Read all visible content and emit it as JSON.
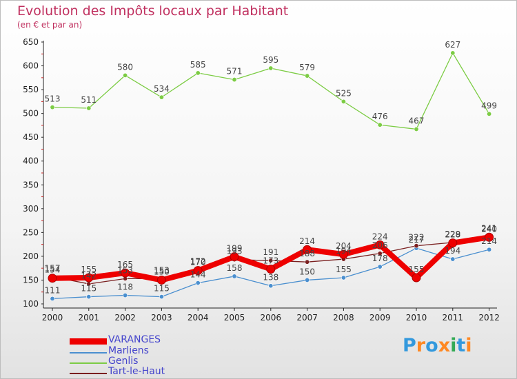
{
  "title": "Evolution des Impôts locaux par Habitant",
  "subtitle": "(en € et par an)",
  "logo_text": "Proxiti",
  "chart_data": {
    "type": "line",
    "x": [
      "2000",
      "2001",
      "2002",
      "2003",
      "2004",
      "2005",
      "2006",
      "2007",
      "2008",
      "2009",
      "2010",
      "2011",
      "2012"
    ],
    "yticks": [
      100,
      150,
      200,
      250,
      300,
      350,
      400,
      450,
      500,
      550,
      600,
      650
    ],
    "ylim": [
      100,
      650
    ],
    "grid": false,
    "legend": "bottom-left",
    "series": [
      {
        "name": "VARANGES",
        "color": "#ee0000",
        "values": [
          154,
          155,
          165,
          150,
          170,
          199,
          173,
          214,
          204,
          224,
          155,
          228,
          240
        ]
      },
      {
        "name": "Marliens",
        "color": "#4a8fcf",
        "values": [
          111,
          115,
          118,
          115,
          144,
          158,
          138,
          150,
          155,
          178,
          217,
          194,
          214
        ]
      },
      {
        "name": "Genlis",
        "color": "#7ccc44",
        "values": [
          513,
          511,
          580,
          534,
          585,
          571,
          595,
          579,
          525,
          476,
          467,
          627,
          499
        ]
      },
      {
        "name": "Tart-le-Haut",
        "color": "#7a1f1f",
        "values": [
          157,
          142,
          153,
          153,
          172,
          193,
          191,
          188,
          194,
          206,
          222,
          229,
          241
        ]
      }
    ]
  }
}
